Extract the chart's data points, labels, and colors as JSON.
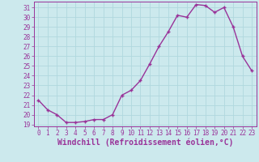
{
  "hours": [
    0,
    1,
    2,
    3,
    4,
    5,
    6,
    7,
    8,
    9,
    10,
    11,
    12,
    13,
    14,
    15,
    16,
    17,
    18,
    19,
    20,
    21,
    22,
    23
  ],
  "values": [
    21.5,
    20.5,
    20.0,
    19.2,
    19.2,
    19.3,
    19.5,
    19.5,
    20.0,
    22.0,
    22.5,
    23.5,
    25.2,
    27.0,
    28.5,
    30.2,
    30.0,
    31.3,
    31.2,
    30.5,
    31.0,
    29.0,
    26.0,
    24.5
  ],
  "line_color": "#993399",
  "marker": "+",
  "bg_color": "#cce9ed",
  "grid_color": "#b0d8de",
  "xlabel": "Windchill (Refroidissement éolien,°C)",
  "ylim_min": 18.8,
  "ylim_max": 31.6,
  "yticks": [
    19,
    20,
    21,
    22,
    23,
    24,
    25,
    26,
    27,
    28,
    29,
    30,
    31
  ],
  "xticks": [
    0,
    1,
    2,
    3,
    4,
    5,
    6,
    7,
    8,
    9,
    10,
    11,
    12,
    13,
    14,
    15,
    16,
    17,
    18,
    19,
    20,
    21,
    22,
    23
  ],
  "tick_color": "#993399",
  "tick_fontsize": 5.5,
  "xlabel_fontsize": 7.0,
  "linewidth": 1.0,
  "markersize": 3.5,
  "markeredgewidth": 1.0
}
